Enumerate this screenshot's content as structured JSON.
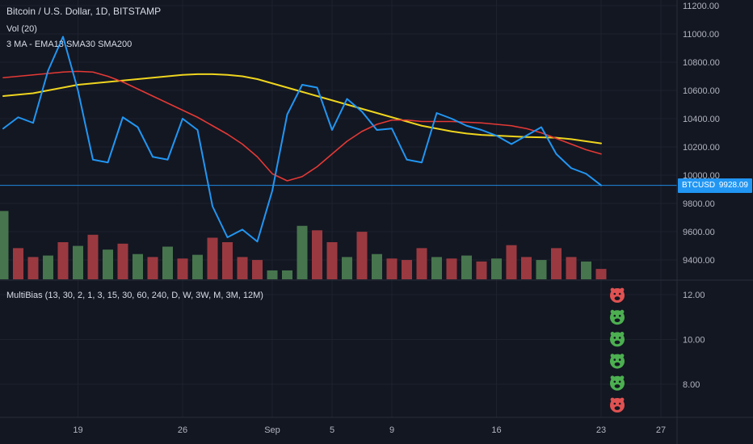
{
  "chart": {
    "symbol_title": "Bitcoin / U.S. Dollar, 1D, BITSTAMP",
    "volume_label": "Vol (20)",
    "ma_label": "3 MA - EMA13 SMA30 SMA200",
    "multibias_label": "MultiBias (13, 30, 2, 1, 3, 15, 30, 60, 240, D, W, 3W, M, 3M, 12M)",
    "price_badge": {
      "symbol": "BTCUSD",
      "price": "9928.09"
    }
  },
  "colors": {
    "background": "#131722",
    "grid": "#1e222d",
    "separator": "#2a2e39",
    "axis_text": "#b2b5be",
    "text_primary": "#d8dce6",
    "price_line": "#2196f3",
    "ma_fast": "#e53935",
    "ma_slow": "#efd51e",
    "volume_up": "#4a7a50",
    "volume_down": "#a23b42",
    "bias_up": "#4caf50",
    "bias_down": "#e05252",
    "badge": "#2196f3"
  },
  "chart_data": {
    "type": "line",
    "title": "Bitcoin / U.S. Dollar, 1D, BITSTAMP",
    "ylim": [
      9400,
      11200
    ],
    "lower_ylim": [
      8,
      12
    ],
    "grid": true,
    "current_price": 9928.09,
    "price_axis": [
      "11200.00",
      "11000.00",
      "10800.00",
      "10600.00",
      "10400.00",
      "10200.00",
      "10000.00",
      "9800.00",
      "9600.00",
      "9400.00"
    ],
    "lower_axis": [
      "12.00",
      "10.00",
      "8.00"
    ],
    "x_ticks": [
      {
        "label": "19",
        "day": 5
      },
      {
        "label": "26",
        "day": 12
      },
      {
        "label": "Sep",
        "day": 18
      },
      {
        "label": "5",
        "day": 22
      },
      {
        "label": "9",
        "day": 26
      },
      {
        "label": "16",
        "day": 33
      },
      {
        "label": "23",
        "day": 40
      },
      {
        "label": "27",
        "day": 44
      }
    ],
    "series": [
      {
        "name": "SMA200",
        "color_key": "ma_slow",
        "width": 2,
        "values": [
          10560,
          10570,
          10580,
          10600,
          10620,
          10640,
          10650,
          10660,
          10670,
          10680,
          10690,
          10700,
          10710,
          10715,
          10715,
          10710,
          10700,
          10680,
          10650,
          10620,
          10590,
          10560,
          10530,
          10500,
          10470,
          10440,
          10410,
          10380,
          10350,
          10330,
          10310,
          10295,
          10285,
          10280,
          10275,
          10270,
          10268,
          10265,
          10255,
          10240,
          10225
        ]
      },
      {
        "name": "SMA30",
        "color_key": "ma_fast",
        "width": 1.6,
        "values": [
          10690,
          10700,
          10710,
          10720,
          10730,
          10735,
          10730,
          10700,
          10660,
          10610,
          10560,
          10510,
          10460,
          10410,
          10350,
          10290,
          10220,
          10130,
          10010,
          9960,
          9990,
          10060,
          10150,
          10240,
          10310,
          10360,
          10390,
          10390,
          10380,
          10380,
          10380,
          10375,
          10370,
          10360,
          10350,
          10330,
          10300,
          10260,
          10220,
          10180,
          10150
        ]
      },
      {
        "name": "close",
        "color_key": "price_line",
        "width": 2,
        "values": [
          10330,
          10410,
          10370,
          10740,
          10980,
          10600,
          10110,
          10090,
          10410,
          10340,
          10130,
          10110,
          10400,
          10320,
          9780,
          9560,
          9615,
          9530,
          9890,
          10430,
          10640,
          10620,
          10320,
          10540,
          10450,
          10320,
          10330,
          10110,
          10090,
          10440,
          10400,
          10350,
          10320,
          10280,
          10220,
          10280,
          10340,
          10150,
          10050,
          10010,
          9928.09
        ]
      }
    ],
    "volume": {
      "values": [
        92,
        42,
        30,
        32,
        50,
        45,
        60,
        40,
        48,
        34,
        30,
        44,
        28,
        33,
        56,
        50,
        30,
        26,
        12,
        12,
        72,
        66,
        50,
        30,
        64,
        34,
        28,
        26,
        42,
        30,
        28,
        32,
        24,
        28,
        46,
        30,
        26,
        42,
        30,
        24,
        14
      ],
      "direction": [
        "up",
        "down",
        "down",
        "up",
        "down",
        "up",
        "down",
        "up",
        "down",
        "up",
        "down",
        "up",
        "down",
        "up",
        "down",
        "down",
        "down",
        "down",
        "up",
        "up",
        "up",
        "down",
        "down",
        "up",
        "down",
        "up",
        "down",
        "down",
        "down",
        "up",
        "down",
        "up",
        "down",
        "up",
        "down",
        "down",
        "up",
        "down",
        "down",
        "up",
        "down"
      ]
    },
    "multibias": [
      "down",
      "up",
      "up",
      "up",
      "up",
      "down"
    ]
  }
}
